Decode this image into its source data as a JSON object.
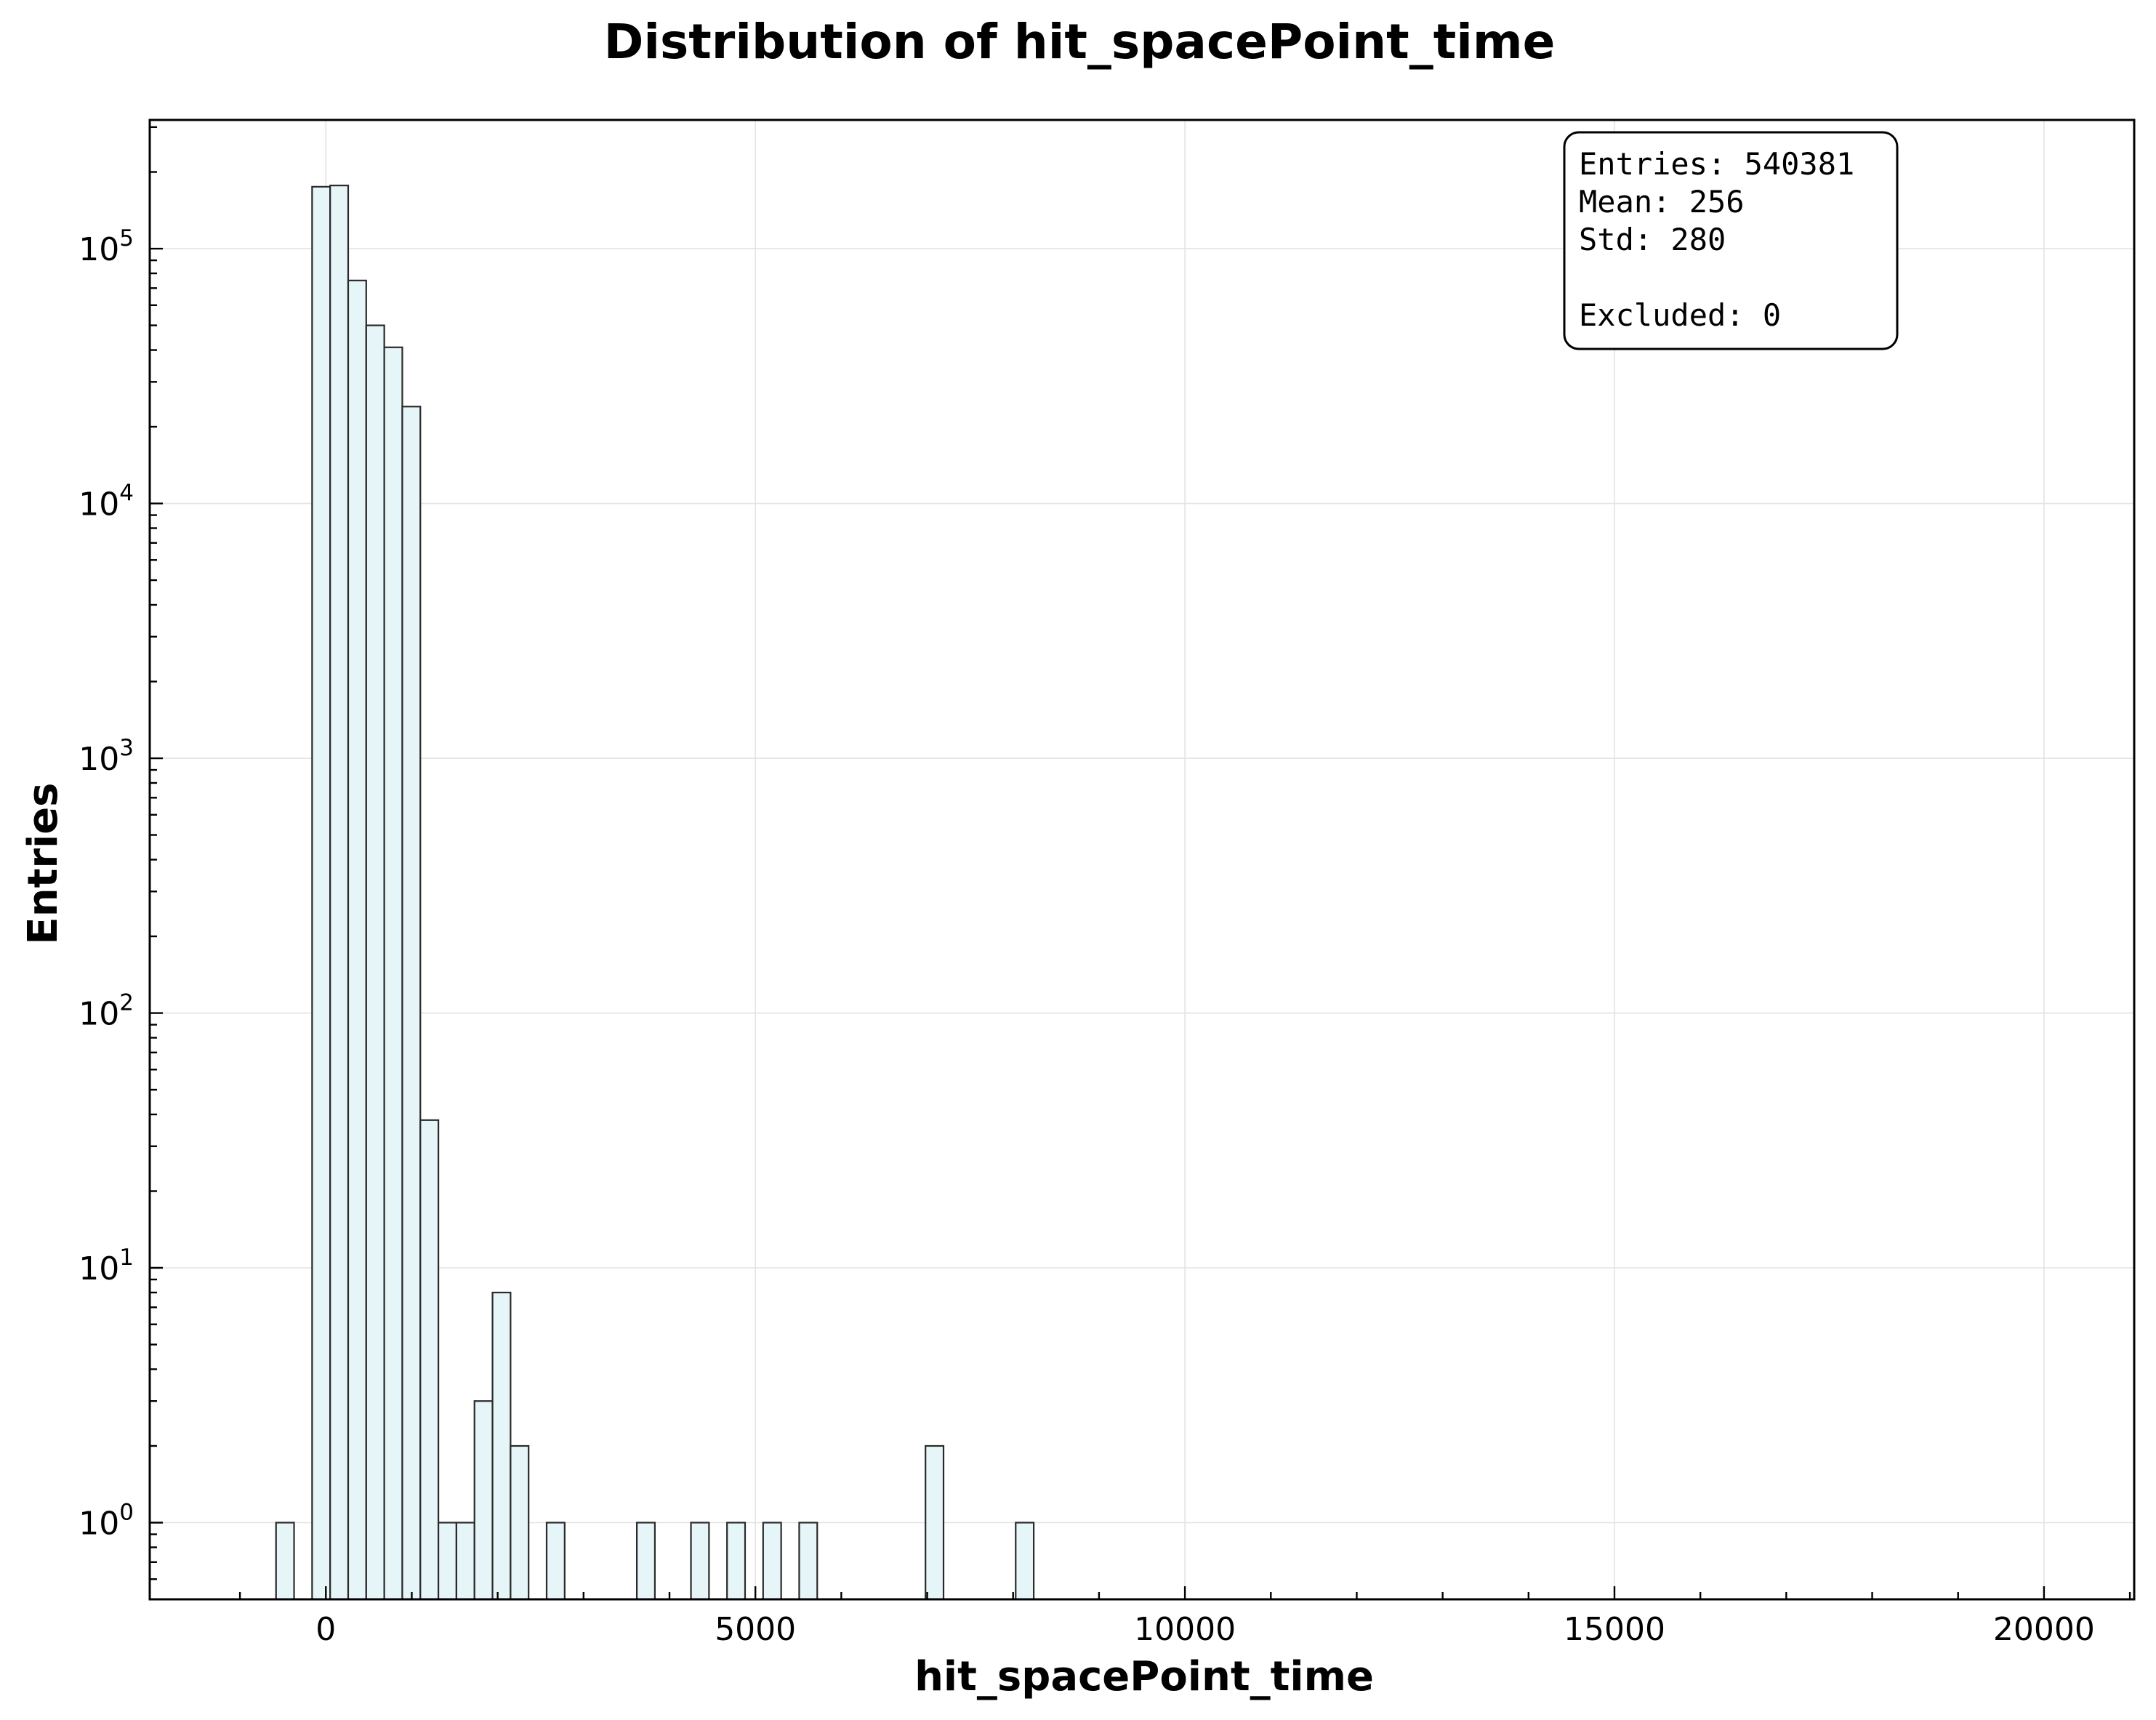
{
  "chart_data": {
    "type": "bar",
    "title": "Distribution of hit_spacePoint_time",
    "xlabel": "hit_spacePoint_time",
    "ylabel": "Entries",
    "yscale": "log",
    "xlim": [
      -2050,
      21050
    ],
    "ylim": [
      0.5,
      320000
    ],
    "grid": true,
    "x_ticks": [
      0,
      5000,
      10000,
      15000,
      20000
    ],
    "x_tick_labels": [
      "0",
      "5000",
      "10000",
      "15000",
      "20000"
    ],
    "y_ticks": [
      1,
      10,
      100,
      1000,
      10000,
      100000
    ],
    "y_tick_labels": [
      {
        "base": "10",
        "exp": "0"
      },
      {
        "base": "10",
        "exp": "1"
      },
      {
        "base": "10",
        "exp": "2"
      },
      {
        "base": "10",
        "exp": "3"
      },
      {
        "base": "10",
        "exp": "4"
      },
      {
        "base": "10",
        "exp": "5"
      }
    ],
    "bin_width": 210,
    "bins": [
      {
        "x0": -580,
        "value": 1
      },
      {
        "x0": -160,
        "value": 175000
      },
      {
        "x0": 50,
        "value": 177000
      },
      {
        "x0": 260,
        "value": 75000
      },
      {
        "x0": 470,
        "value": 50000
      },
      {
        "x0": 680,
        "value": 41000
      },
      {
        "x0": 890,
        "value": 24000
      },
      {
        "x0": 1100,
        "value": 38
      },
      {
        "x0": 1310,
        "value": 1
      },
      {
        "x0": 1520,
        "value": 1
      },
      {
        "x0": 1730,
        "value": 3
      },
      {
        "x0": 1940,
        "value": 8
      },
      {
        "x0": 2150,
        "value": 2
      },
      {
        "x0": 2570,
        "value": 1
      },
      {
        "x0": 3620,
        "value": 1
      },
      {
        "x0": 4250,
        "value": 1
      },
      {
        "x0": 4670,
        "value": 1
      },
      {
        "x0": 5090,
        "value": 1
      },
      {
        "x0": 5510,
        "value": 1
      },
      {
        "x0": 6980,
        "value": 2
      },
      {
        "x0": 8030,
        "value": 1
      }
    ],
    "stats_box": {
      "position": "top-right",
      "lines": [
        "Entries: 540381",
        "Mean: 256",
        "Std: 280",
        "",
        "Excluded: 0"
      ]
    },
    "bar_color": "#e6f5f7",
    "edge_color": "#2a2a2a"
  }
}
